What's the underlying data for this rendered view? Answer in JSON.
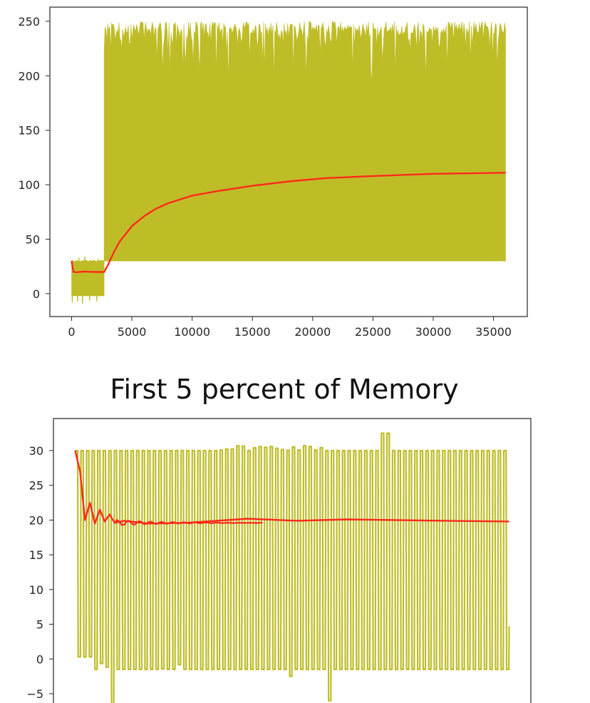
{
  "colors": {
    "raw_series": "#bfbd27",
    "mean_series": "#ff2a1a",
    "axes": "#262626",
    "background": "#ffffff"
  },
  "chart_data": [
    {
      "type": "line",
      "title": "",
      "xlabel": "",
      "ylabel": "",
      "xlim": [
        -1800,
        37800
      ],
      "ylim": [
        -21,
        263
      ],
      "grid": false,
      "xticks": [
        0,
        5000,
        10000,
        15000,
        20000,
        25000,
        30000,
        35000
      ],
      "xtick_labels": [
        "0",
        "5000",
        "10000",
        "15000",
        "20000",
        "25000",
        "30000",
        "35000"
      ],
      "yticks": [
        0,
        50,
        100,
        150,
        200,
        250
      ],
      "ytick_labels": [
        "0",
        "50",
        "100",
        "150",
        "200",
        "250"
      ],
      "series": [
        {
          "role": "raw",
          "color": "#bfbd27",
          "band": [
            {
              "x0": 0,
              "x1": 2700,
              "low": -2,
              "high": 31
            },
            {
              "x0": 2700,
              "x1": 36000,
              "low": 30,
              "high": 250
            }
          ],
          "spikes_low": [
            [
              60,
              -8
            ],
            [
              500,
              -7
            ],
            [
              900,
              -9
            ],
            [
              1500,
              -6
            ],
            [
              2100,
              -7
            ]
          ],
          "spikes_high": [
            [
              600,
              33
            ],
            [
              1100,
              34
            ],
            [
              2200,
              32
            ]
          ]
        },
        {
          "role": "mean",
          "color": "#ff2a1a",
          "x": [
            0,
            150,
            400,
            1000,
            2000,
            2700,
            3000,
            3500,
            4000,
            5000,
            6000,
            7000,
            8000,
            10000,
            12000,
            15000,
            18000,
            21000,
            25000,
            30000,
            36000
          ],
          "y": [
            30,
            20,
            19.7,
            20.3,
            19.9,
            19.9,
            26,
            38,
            48,
            62,
            71,
            78,
            83,
            90,
            94,
            99,
            103,
            106,
            108,
            110,
            111
          ]
        }
      ]
    },
    {
      "type": "line",
      "title": "First 5 percent of  Memory",
      "xlabel": "",
      "ylabel": "",
      "xlim": [
        -88,
        1848
      ],
      "ylim": [
        -5.5,
        33.5
      ],
      "grid": false,
      "yticks": [
        -5,
        0,
        5,
        10,
        15,
        20,
        25,
        30
      ],
      "ytick_labels": [
        "−5",
        "0",
        "5",
        "10",
        "15",
        "20",
        "25",
        "30"
      ],
      "series": [
        {
          "role": "raw",
          "color": "#bfbd27",
          "cycles": 78,
          "x_range": [
            0,
            1760
          ],
          "high": 30,
          "low": -1.5,
          "end_value": 4.7
        },
        {
          "role": "mean",
          "color": "#ff2a1a",
          "x": [
            0,
            20,
            40,
            60,
            80,
            100,
            120,
            140,
            160,
            200,
            300,
            450,
            700,
            900,
            1100,
            1300,
            1500,
            1760
          ],
          "y": [
            30,
            27,
            20,
            22.5,
            19.5,
            21.5,
            19.8,
            20.8,
            19.6,
            19.9,
            19.5,
            19.6,
            20.2,
            19.9,
            20.1,
            20.0,
            19.9,
            19.8
          ]
        }
      ]
    }
  ]
}
